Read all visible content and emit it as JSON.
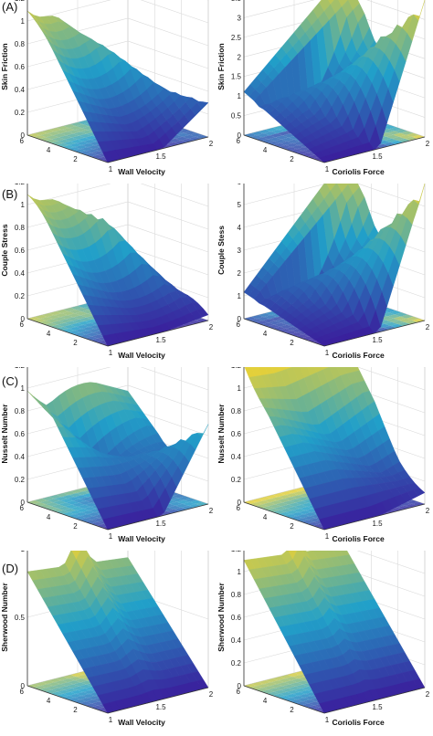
{
  "panels": [
    {
      "tag": "(A)",
      "plots": [
        0,
        1
      ]
    },
    {
      "tag": "(B)",
      "plots": [
        2,
        3
      ]
    },
    {
      "tag": "(C)",
      "plots": [
        4,
        5
      ]
    },
    {
      "tag": "(D)",
      "plots": [
        6,
        7
      ]
    }
  ],
  "chart_data": [
    {
      "type": "surface",
      "panel": "(A)",
      "xlabel": "Wall Velocity",
      "zlabel": "Skin Friction",
      "x_ticks": [
        "1",
        "1.5",
        "2"
      ],
      "y_ticks": [
        "2",
        "4",
        "6"
      ],
      "z_ticks": [
        "0",
        "0.2",
        "0.4",
        "0.6",
        "0.8",
        "1",
        "1.2"
      ],
      "xlim": [
        1,
        2
      ],
      "ylim": [
        0,
        6
      ],
      "zlim": [
        0,
        1.2
      ],
      "corners": {
        "x1_y6": 1.2,
        "x2_y6": 0.0,
        "x1_y0": 0.0,
        "x2_y0": 0.0
      },
      "ridge": {
        "x": [
          1.2,
          1.5,
          1.8,
          2.0
        ],
        "y": [
          6,
          4,
          2,
          0
        ],
        "z": [
          1.0,
          0.75,
          0.4,
          0.3
        ]
      }
    },
    {
      "type": "surface",
      "panel": "(A)",
      "xlabel": "Coriolis Force",
      "zlabel": "Skin Friction",
      "x_ticks": [
        "1",
        "1.5",
        "2"
      ],
      "y_ticks": [
        "2",
        "4",
        "6"
      ],
      "z_ticks": [
        "0",
        "0.5",
        "1",
        "1.5",
        "2",
        "2.5",
        "3",
        "3.5"
      ],
      "xlim": [
        1,
        2
      ],
      "ylim": [
        0,
        6
      ],
      "zlim": [
        0,
        3.8
      ],
      "corners": {
        "x1_y6": 1.2,
        "x2_y6": 3.8,
        "x1_y0": 0.0,
        "x2_y0": 0.0
      },
      "ridge": {
        "x": [
          1.4,
          1.6,
          1.8,
          2.0
        ],
        "y": [
          5,
          4,
          2,
          0
        ],
        "z": [
          0.2,
          1.2,
          2.6,
          3.8
        ]
      }
    },
    {
      "type": "surface",
      "panel": "(B)",
      "xlabel": "Wall Velocity",
      "zlabel": "Couple Stress",
      "x_ticks": [
        "1",
        "1.5",
        "2"
      ],
      "y_ticks": [
        "2",
        "4",
        "6"
      ],
      "z_ticks": [
        "0",
        "0.2",
        "0.4",
        "0.6",
        "0.8",
        "1",
        "1.2"
      ],
      "xlim": [
        1,
        2
      ],
      "ylim": [
        0,
        6
      ],
      "zlim": [
        0,
        1.2
      ],
      "corners": {
        "x1_y6": 1.2,
        "x2_y6": 0.0,
        "x1_y0": 0.0,
        "x2_y0": 0.0
      },
      "ridge": {
        "x": [
          1.2,
          1.5,
          1.8,
          2.0
        ],
        "y": [
          6,
          4,
          2,
          0
        ],
        "z": [
          1.0,
          0.85,
          0.3,
          0.05
        ]
      }
    },
    {
      "type": "surface",
      "panel": "(B)",
      "xlabel": "Coriolis Force",
      "zlabel": "Couple Stess",
      "x_ticks": [
        "1",
        "1.5",
        "2"
      ],
      "y_ticks": [
        "2",
        "4",
        "6"
      ],
      "z_ticks": [
        "0",
        "1",
        "2",
        "3",
        "4",
        "5",
        "6"
      ],
      "xlim": [
        1,
        2
      ],
      "ylim": [
        0,
        6
      ],
      "zlim": [
        0,
        6.2
      ],
      "corners": {
        "x1_y6": 1.2,
        "x2_y6": 6.2,
        "x1_y0": 0.0,
        "x2_y0": 0.0
      },
      "ridge": {
        "x": [
          1.4,
          1.6,
          1.8,
          2.0
        ],
        "y": [
          5,
          4,
          2,
          0
        ],
        "z": [
          0.2,
          1.5,
          3.8,
          6.2
        ]
      }
    },
    {
      "type": "surface",
      "panel": "(C)",
      "xlabel": "Wall Velocity",
      "zlabel": "Nusselt Number",
      "x_ticks": [
        "1",
        "1.5",
        "2"
      ],
      "y_ticks": [
        "2",
        "4",
        "6"
      ],
      "z_ticks": [
        "0",
        "0.2",
        "0.4",
        "0.6",
        "0.8",
        "1",
        "1.2"
      ],
      "xlim": [
        1,
        2
      ],
      "ylim": [
        0,
        6
      ],
      "zlim": [
        0,
        1.2
      ],
      "corners": {
        "x1_y6": 1.2,
        "x2_y6": 0.75,
        "x1_y0": 0.0,
        "x2_y0": 0.0
      },
      "ridge": {
        "x": [
          1.2,
          1.5,
          1.8,
          2.0
        ],
        "y": [
          6,
          4,
          2,
          0
        ],
        "z": [
          0.8,
          0.3,
          0.45,
          0.7
        ]
      }
    },
    {
      "type": "surface",
      "panel": "(C)",
      "xlabel": "Coriolis Force",
      "zlabel": "Nusselt Number",
      "x_ticks": [
        "1",
        "1.5",
        "2"
      ],
      "y_ticks": [
        "2",
        "4",
        "6"
      ],
      "z_ticks": [
        "0",
        "0.2",
        "0.4",
        "0.6",
        "0.8",
        "1",
        "1.2"
      ],
      "xlim": [
        1,
        2
      ],
      "ylim": [
        0,
        6
      ],
      "zlim": [
        0,
        1.2
      ],
      "corners": {
        "x1_y6": 1.2,
        "x2_y6": 1.2,
        "x1_y0": 0.0,
        "x2_y0": 0.0
      },
      "ridge": {
        "x": [
          1.2,
          1.5,
          1.8,
          2.0
        ],
        "y": [
          6,
          4,
          2,
          0
        ],
        "z": [
          1.2,
          0.6,
          0.25,
          0.1
        ]
      }
    },
    {
      "type": "surface",
      "panel": "(D)",
      "xlabel": "Wall Velocity",
      "zlabel": "Sherwood Number",
      "x_ticks": [
        "1",
        "1.5",
        "2"
      ],
      "y_ticks": [
        "2",
        "4",
        "6"
      ],
      "z_ticks": [
        "0",
        "0.5",
        "1"
      ],
      "xlim": [
        1,
        2
      ],
      "ylim": [
        0,
        6
      ],
      "zlim": [
        0,
        1.2
      ],
      "corners": {
        "x1_y6": 1.0,
        "x2_y6": 0.9,
        "x1_y0": 0.0,
        "x2_y0": 0.0
      },
      "ridge": {
        "x": [
          1.5
        ],
        "y": [
          6
        ],
        "z": [
          1.2
        ]
      }
    },
    {
      "type": "surface",
      "panel": "(D)",
      "xlabel": "Coriolis Force",
      "zlabel": "Sherwood Number",
      "x_ticks": [
        "1",
        "1.5",
        "2"
      ],
      "y_ticks": [
        "2",
        "4",
        "6"
      ],
      "z_ticks": [
        "0",
        "0.2",
        "0.4",
        "0.6",
        "0.8",
        "1",
        "1.2"
      ],
      "xlim": [
        1,
        2
      ],
      "ylim": [
        0,
        6
      ],
      "zlim": [
        0,
        1.2
      ],
      "corners": {
        "x1_y6": 1.1,
        "x2_y6": 1.0,
        "x1_y0": 0.0,
        "x2_y0": 0.0
      },
      "ridge": {
        "x": [
          1.5
        ],
        "y": [
          6
        ],
        "z": [
          1.2
        ]
      }
    }
  ],
  "colors": {
    "low": "#3a1e9c",
    "mid": "#21a0c9",
    "high": "#f4d42e",
    "grid": "#d9d9d9",
    "axis": "#333333"
  }
}
